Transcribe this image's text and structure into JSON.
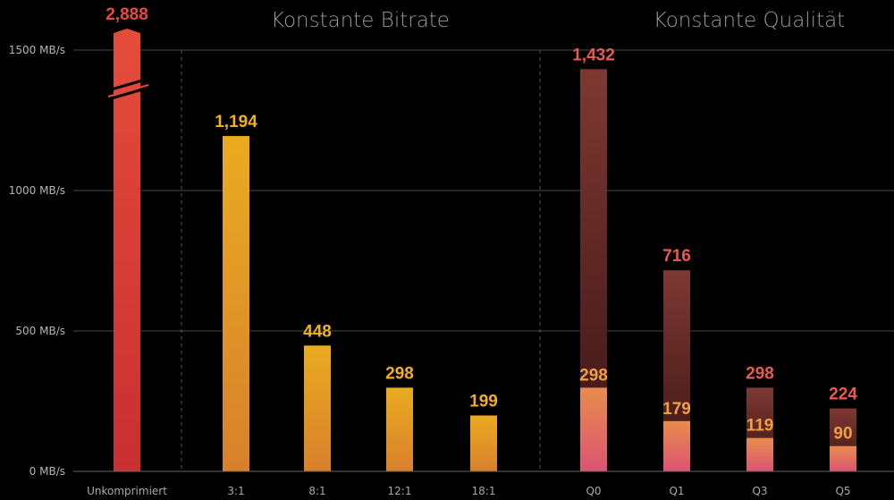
{
  "chart_data": {
    "type": "bar",
    "ylabel": "",
    "ylim": [
      0,
      1500
    ],
    "yticks": [
      0,
      500,
      1000,
      1500
    ],
    "ytick_labels": [
      "0 MB/s",
      "500 MB/s",
      "1000 MB/s",
      "1500 MB/s"
    ],
    "grid": true,
    "groups": [
      {
        "title": "",
        "categories": [
          "Unkomprimiert"
        ],
        "values": [
          2888
        ],
        "value_labels": [
          "2,888"
        ],
        "color": "#e04a3a",
        "axis_break": true
      },
      {
        "title": "Konstante Bitrate",
        "categories": [
          "3:1",
          "8:1",
          "12:1",
          "18:1"
        ],
        "values": [
          1194,
          448,
          298,
          199
        ],
        "value_labels": [
          "1,194",
          "448",
          "298",
          "199"
        ],
        "color": "#e8a820"
      },
      {
        "title": "Konstante Qualität",
        "categories": [
          "Q0",
          "Q1",
          "Q3",
          "Q5"
        ],
        "series": [
          {
            "name": "outer",
            "values": [
              1432,
              716,
              298,
              224
            ],
            "value_labels": [
              "1,432",
              "716",
              "298",
              "224"
            ],
            "color": "#7a3530",
            "label_color": "#e85a50"
          },
          {
            "name": "inner",
            "values": [
              298,
              179,
              119,
              90
            ],
            "value_labels": [
              "298",
              "179",
              "119",
              "90"
            ],
            "color": "#e8884a",
            "label_color": "#f0a040"
          }
        ]
      }
    ]
  }
}
